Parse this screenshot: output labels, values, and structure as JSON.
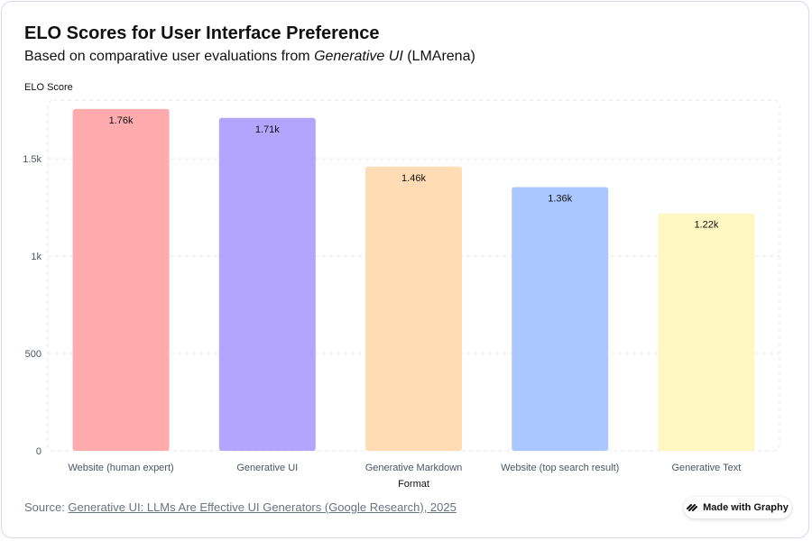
{
  "title": "ELO Scores for User Interface Preference",
  "subtitle_prefix": "Based on comparative user evaluations from ",
  "subtitle_em": "Generative UI",
  "subtitle_suffix": " (LMArena)",
  "source_label": "Source: ",
  "source_link": "Generative UI: LLMs Are Effective UI Generators (Google Research), 2025",
  "badge_label": "Made with Graphy",
  "badge_icon": "graphy-logo-icon",
  "chart_data": {
    "type": "bar",
    "title": "ELO Scores for User Interface Preference",
    "xlabel": "Format",
    "ylabel": "ELO Score",
    "ylim": [
      0,
      1760
    ],
    "yticks": [
      0,
      500,
      1000,
      1500
    ],
    "ytick_labels": [
      "0",
      "500",
      "1k",
      "1.5k"
    ],
    "grid": true,
    "categories": [
      "Website (human expert)",
      "Generative UI",
      "Generative Markdown",
      "Website (top search result)",
      "Generative Text"
    ],
    "values": [
      1756,
      1710,
      1460,
      1355,
      1220
    ],
    "value_labels": [
      "1.76k",
      "1.71k",
      "1.46k",
      "1.36k",
      "1.22k"
    ],
    "colors": [
      "#ffabad",
      "#b3a5fd",
      "#ffdcb3",
      "#abc7ff",
      "#fef7c2"
    ]
  }
}
